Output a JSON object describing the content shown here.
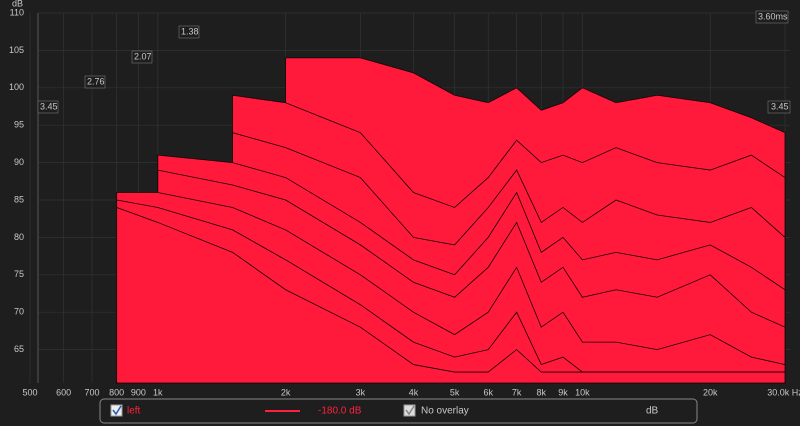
{
  "chart_data": {
    "type": "waterfall",
    "y_unit": "dB",
    "x": [
      800,
      1000,
      1500,
      2000,
      3000,
      4000,
      5000,
      6000,
      7000,
      8000,
      9000,
      10000,
      12000,
      15000,
      20000,
      25000,
      30000
    ],
    "series": [
      {
        "color": "#ff1a3c",
        "values": [
          null,
          null,
          null,
          104,
          104,
          102,
          99,
          98,
          100,
          97,
          98,
          100,
          98,
          99,
          98,
          96,
          94
        ]
      },
      {
        "color": "#ff1a3c",
        "values": [
          null,
          null,
          99,
          98,
          94,
          86,
          84,
          88,
          93,
          90,
          91,
          90,
          92,
          90,
          89,
          91,
          88
        ]
      },
      {
        "color": "#ff1a3c",
        "values": [
          null,
          null,
          94,
          92,
          88,
          80,
          79,
          84,
          89,
          82,
          84,
          82,
          85,
          83,
          82,
          84,
          80
        ]
      },
      {
        "color": "#ff1a3c",
        "values": [
          null,
          91,
          90,
          88,
          82,
          77,
          75,
          80,
          86,
          78,
          80,
          77,
          78,
          77,
          79,
          76,
          73
        ]
      },
      {
        "color": "#ff1a3c",
        "values": [
          null,
          89,
          87,
          85,
          79,
          74,
          72,
          76,
          82,
          74,
          76,
          72,
          73,
          72,
          75,
          70,
          68
        ]
      },
      {
        "color": "#ff1a3c",
        "values": [
          86,
          86,
          84,
          81,
          75,
          70,
          67,
          70,
          76,
          68,
          70,
          66,
          66,
          65,
          67,
          64,
          63
        ]
      },
      {
        "color": "#ff1a3c",
        "values": [
          85,
          84,
          81,
          77,
          71,
          66,
          64,
          65,
          70,
          63,
          64,
          62,
          62,
          62,
          62,
          62,
          62
        ]
      },
      {
        "color": "#ff1a3c",
        "values": [
          84,
          82,
          78,
          73,
          68,
          63,
          62,
          62,
          65,
          62,
          62,
          62,
          62,
          62,
          62,
          62,
          62
        ]
      }
    ],
    "xlim": [
      500,
      30000
    ],
    "log_x": true,
    "xticks": [
      500,
      600,
      700,
      800,
      900,
      {
        "value": 1000,
        "label": "1k"
      },
      {
        "value": 2000,
        "label": "2k"
      },
      {
        "value": 3000,
        "label": "3k"
      },
      {
        "value": 4000,
        "label": "4k"
      },
      {
        "value": 5000,
        "label": "5k"
      },
      {
        "value": 6000,
        "label": "6k"
      },
      {
        "value": 7000,
        "label": "7k"
      },
      {
        "value": 8000,
        "label": "8k"
      },
      {
        "value": 9000,
        "label": "9k"
      },
      {
        "value": 10000,
        "label": "10k"
      },
      {
        "value": 20000,
        "label": "20k"
      },
      {
        "value": 30000,
        "label": "30.0k Hz"
      }
    ],
    "ylim": [
      60,
      110
    ],
    "yticks": [
      65,
      70,
      75,
      80,
      85,
      90,
      95,
      100,
      105,
      110
    ],
    "time_ticks": [
      3.45,
      2.76,
      2.07,
      1.38
    ],
    "time_end": {
      "value": 3.6,
      "label": "3.60ms"
    },
    "time_right": 3.45,
    "grid": true,
    "legend": {
      "trace": "left",
      "level": "-180.0 dB",
      "overlay": "No overlay",
      "unit": "dB"
    }
  }
}
